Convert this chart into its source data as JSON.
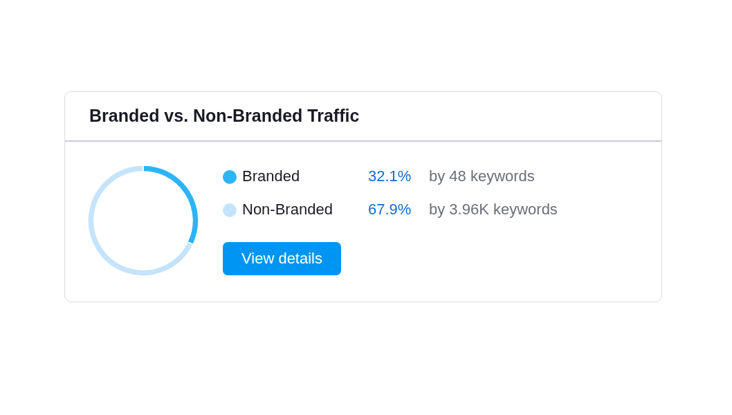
{
  "chart_data": {
    "type": "donut",
    "title": "Branded vs. Non-Branded Traffic",
    "categories": [
      "Branded",
      "Non-Branded"
    ],
    "values": [
      32.1,
      67.9
    ],
    "value_labels": [
      "32.1%",
      "67.9%"
    ],
    "colors": [
      "#2db4f7",
      "#c5e4fb"
    ],
    "legend": "right",
    "annotations": [
      "by 48 keywords",
      "by 3.96K keywords",
      "View details"
    ]
  }
}
